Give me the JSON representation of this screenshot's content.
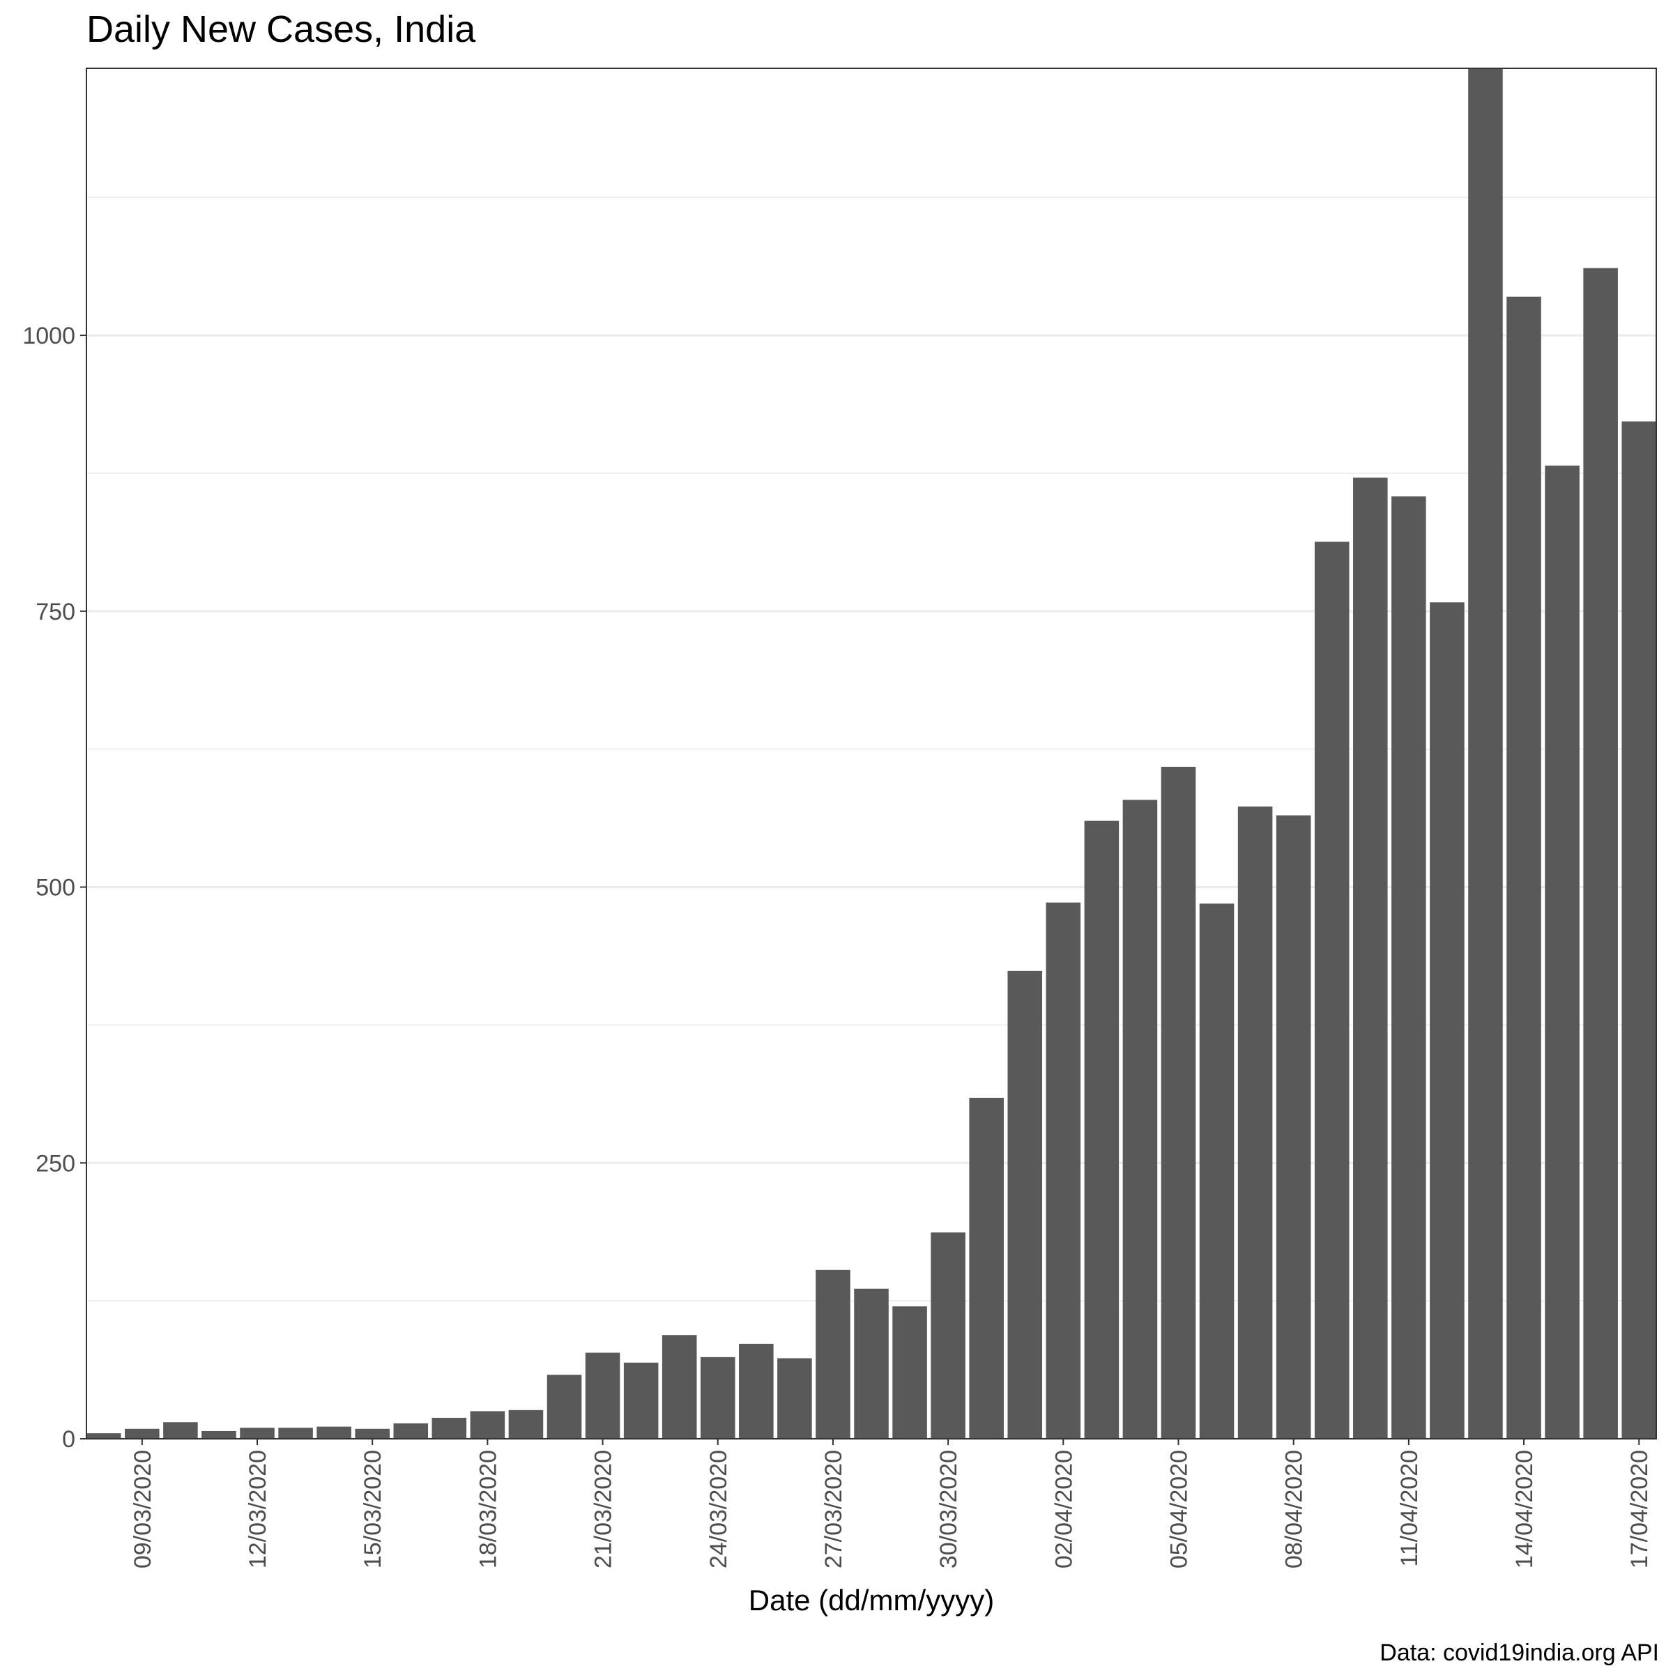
{
  "chart_data": {
    "type": "bar",
    "title": "Daily New Cases, India",
    "xlabel": "Date (dd/mm/yyyy)",
    "ylabel": "",
    "caption": "Data: covid19india.org API",
    "ylim": [
      0,
      1242
    ],
    "y_ticks": [
      0,
      250,
      500,
      750,
      1000
    ],
    "y_tick_labels": [
      "0",
      "250",
      "500",
      "750",
      "1000"
    ],
    "grid": true,
    "bar_color": "#595959",
    "grid_color": "#ebebeb",
    "categories": [
      "08/03/2020",
      "09/03/2020",
      "10/03/2020",
      "11/03/2020",
      "12/03/2020",
      "13/03/2020",
      "14/03/2020",
      "15/03/2020",
      "16/03/2020",
      "17/03/2020",
      "18/03/2020",
      "19/03/2020",
      "20/03/2020",
      "21/03/2020",
      "22/03/2020",
      "23/03/2020",
      "24/03/2020",
      "25/03/2020",
      "26/03/2020",
      "27/03/2020",
      "28/03/2020",
      "29/03/2020",
      "30/03/2020",
      "31/03/2020",
      "01/04/2020",
      "02/04/2020",
      "03/04/2020",
      "04/04/2020",
      "05/04/2020",
      "06/04/2020",
      "07/04/2020",
      "08/04/2020",
      "09/04/2020",
      "10/04/2020",
      "11/04/2020",
      "12/04/2020",
      "13/04/2020",
      "14/04/2020",
      "15/04/2020",
      "16/04/2020",
      "17/04/2020"
    ],
    "values": [
      5,
      9,
      15,
      7,
      10,
      10,
      11,
      9,
      14,
      19,
      25,
      26,
      58,
      78,
      69,
      94,
      74,
      86,
      73,
      153,
      136,
      120,
      187,
      309,
      424,
      486,
      560,
      579,
      609,
      485,
      573,
      565,
      813,
      871,
      854,
      758,
      1242,
      1035,
      882,
      1061,
      922
    ],
    "x_tick_labels": [
      "09/03/2020",
      "12/03/2020",
      "15/03/2020",
      "18/03/2020",
      "21/03/2020",
      "24/03/2020",
      "27/03/2020",
      "30/03/2020",
      "02/04/2020",
      "05/04/2020",
      "08/04/2020",
      "11/04/2020",
      "14/04/2020",
      "17/04/2020"
    ]
  }
}
